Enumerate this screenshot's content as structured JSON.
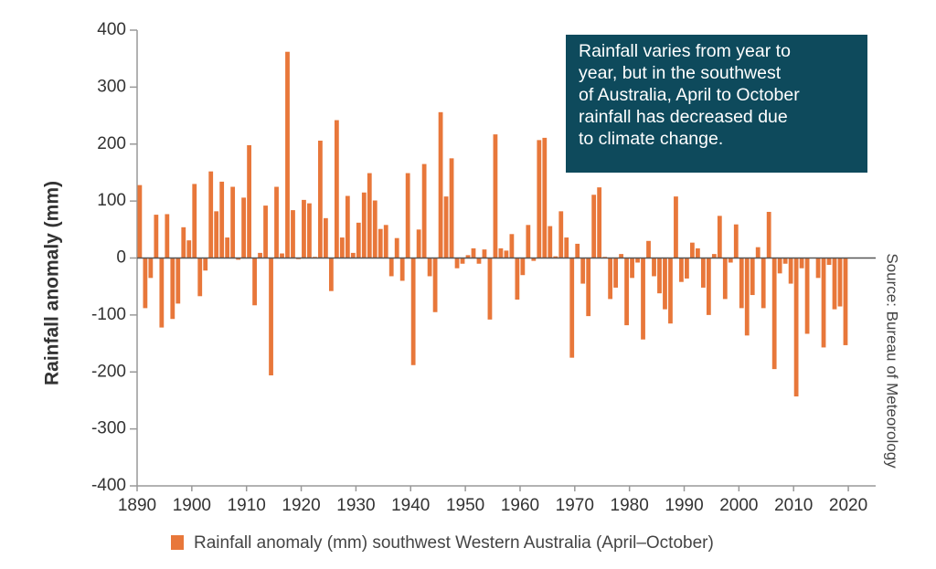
{
  "chart_data": {
    "type": "bar",
    "y_label": "Rainfall anomaly (mm)",
    "source": "Source: Bureau of Meteorology",
    "annotation": [
      "Rainfall varies from year to",
      "year, but in the southwest",
      "of Australia, April to October",
      "rainfall has decreased due",
      "to climate change."
    ],
    "x": [
      1890,
      1891,
      1892,
      1893,
      1894,
      1895,
      1896,
      1897,
      1898,
      1899,
      1900,
      1901,
      1902,
      1903,
      1904,
      1905,
      1906,
      1907,
      1908,
      1909,
      1910,
      1911,
      1912,
      1913,
      1914,
      1915,
      1916,
      1917,
      1918,
      1919,
      1920,
      1921,
      1922,
      1923,
      1924,
      1925,
      1926,
      1927,
      1928,
      1929,
      1930,
      1931,
      1932,
      1933,
      1934,
      1935,
      1936,
      1937,
      1938,
      1939,
      1940,
      1941,
      1942,
      1943,
      1944,
      1945,
      1946,
      1947,
      1948,
      1949,
      1950,
      1951,
      1952,
      1953,
      1954,
      1955,
      1956,
      1957,
      1958,
      1959,
      1960,
      1961,
      1962,
      1963,
      1964,
      1965,
      1966,
      1967,
      1968,
      1969,
      1970,
      1971,
      1972,
      1973,
      1974,
      1975,
      1976,
      1977,
      1978,
      1979,
      1980,
      1981,
      1982,
      1983,
      1984,
      1985,
      1986,
      1987,
      1988,
      1989,
      1990,
      1991,
      1992,
      1993,
      1994,
      1995,
      1996,
      1997,
      1998,
      1999,
      2000,
      2001,
      2002,
      2003,
      2004,
      2005,
      2006,
      2007,
      2008,
      2009,
      2010,
      2011,
      2012,
      2013,
      2014,
      2015,
      2016,
      2017,
      2018,
      2019
    ],
    "series": [
      {
        "name": "Rainfall anomaly (mm) southwest Western Australia (April–October)",
        "color": "#e8773a",
        "values": [
          128,
          -88,
          -35,
          76,
          -122,
          77,
          -107,
          -80,
          54,
          31,
          130,
          -67,
          -22,
          152,
          82,
          134,
          36,
          125,
          -3,
          106,
          198,
          -83,
          9,
          92,
          -206,
          125,
          8,
          362,
          84,
          -2,
          102,
          96,
          2,
          206,
          70,
          -58,
          242,
          36,
          109,
          9,
          62,
          115,
          149,
          101,
          51,
          58,
          -32,
          35,
          -40,
          149,
          -188,
          50,
          165,
          -32,
          -95,
          256,
          108,
          175,
          -18,
          -10,
          5,
          17,
          -10,
          15,
          -108,
          217,
          17,
          13,
          42,
          -73,
          -30,
          58,
          -5,
          207,
          211,
          56,
          3,
          82,
          36,
          -175,
          25,
          -45,
          -102,
          111,
          124,
          2,
          -72,
          -52,
          7,
          -118,
          -35,
          -8,
          -143,
          30,
          -32,
          -62,
          -90,
          -115,
          108,
          -42,
          -36,
          27,
          17,
          -52,
          -100,
          7,
          74,
          -72,
          -8,
          59,
          -88,
          -136,
          -65,
          19,
          -88,
          81,
          -195,
          -27,
          -10,
          -45,
          -243,
          -18,
          -133,
          0,
          -35,
          -157,
          -12,
          -90,
          -85,
          -153
        ]
      }
    ],
    "xlim": [
      1890,
      2025
    ],
    "xticks": [
      1890,
      1900,
      1910,
      1920,
      1930,
      1940,
      1950,
      1960,
      1970,
      1980,
      1990,
      2000,
      2010,
      2020
    ],
    "ylim": [
      -400,
      400
    ],
    "yticks": [
      -400,
      -300,
      -200,
      -100,
      0,
      100,
      200,
      300,
      400
    ]
  }
}
